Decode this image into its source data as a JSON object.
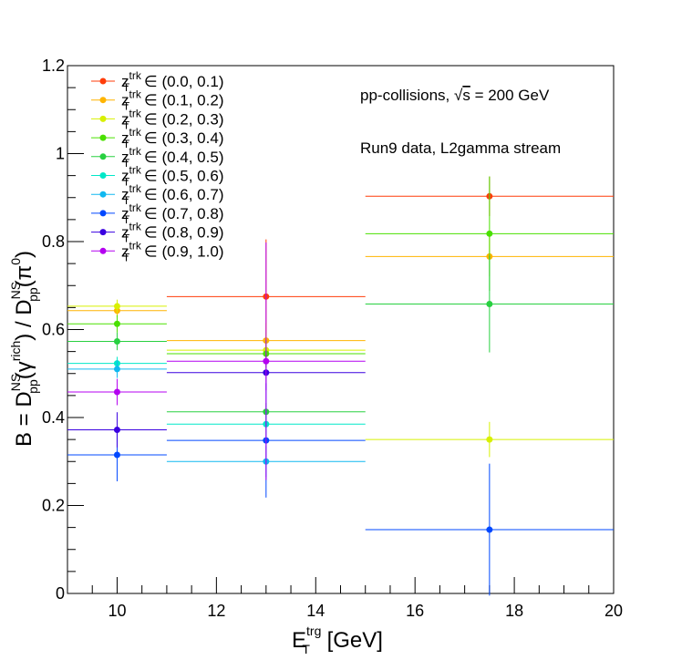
{
  "chart_data": {
    "type": "scatter",
    "ylabel": {
      "prefix": "B = D",
      "num_sup": "NS",
      "num_sub": "pp",
      "num_arg": "(γ",
      "num_arg_sup": "rich",
      "num_arg_end": ")",
      "sep": " / D",
      "den_sup": "NS",
      "den_sub": "pp",
      "den_arg": "(π",
      "den_arg_sup": "0",
      "den_arg_end": ")"
    },
    "xlabel": {
      "base": "E",
      "sup": "trg",
      "sub": "T",
      "rest": " [GeV]"
    },
    "xlim": [
      9,
      20
    ],
    "ylim": [
      0,
      1.2
    ],
    "xticks": [
      10,
      12,
      14,
      16,
      18,
      20
    ],
    "yticks": [
      0,
      0.2,
      0.4,
      0.6,
      0.8,
      1,
      1.2
    ],
    "ytick_labels": [
      "0",
      "0.2",
      "0.4",
      "0.6",
      "0.8",
      "1",
      "1.2"
    ],
    "legend_position": "top-left",
    "annotations": [
      {
        "text": "pp-collisions, ",
        "sqrt": "s",
        "tail": " = 200 GeV"
      },
      {
        "text": "Run9 data, L2gamma stream"
      }
    ],
    "bins": [
      {
        "x": 10,
        "xlow": 9,
        "xhigh": 11
      },
      {
        "x": 13,
        "xlow": 11,
        "xhigh": 15
      },
      {
        "x": 17.5,
        "xlow": 15,
        "xhigh": 20
      }
    ],
    "series": [
      {
        "name": "z_T^trk ∈ (0.0, 0.1)",
        "label_base": "z",
        "label_sup": "trk",
        "label_sub": "T",
        "label_range": " ∈ (0.0, 0.1)",
        "color": "#ff3d0a",
        "points": [
          {
            "bin": 1,
            "y": 0.675,
            "err": 0.13
          },
          {
            "bin": 2,
            "y": 0.903,
            "err": 0.045
          }
        ]
      },
      {
        "name": "z_T^trk ∈ (0.1, 0.2)",
        "label_base": "z",
        "label_sup": "trk",
        "label_sub": "T",
        "label_range": " ∈ (0.1, 0.2)",
        "color": "#ffb400",
        "points": [
          {
            "bin": 0,
            "y": 0.643,
            "err": 0.015
          },
          {
            "bin": 1,
            "y": 0.575,
            "err": 0.04
          },
          {
            "bin": 2,
            "y": 0.766,
            "err": 0.045
          }
        ]
      },
      {
        "name": "z_T^trk ∈ (0.2, 0.3)",
        "label_base": "z",
        "label_sup": "trk",
        "label_sub": "T",
        "label_range": " ∈ (0.2, 0.3)",
        "color": "#d8f000",
        "points": [
          {
            "bin": 0,
            "y": 0.653,
            "err": 0.015
          },
          {
            "bin": 1,
            "y": 0.553,
            "err": 0.04
          },
          {
            "bin": 2,
            "y": 0.35,
            "err": 0.04
          }
        ]
      },
      {
        "name": "z_T^trk ∈ (0.3, 0.4)",
        "label_base": "z",
        "label_sup": "trk",
        "label_sub": "T",
        "label_range": " ∈ (0.3, 0.4)",
        "color": "#4ae000",
        "points": [
          {
            "bin": 0,
            "y": 0.613,
            "err": 0.02
          },
          {
            "bin": 1,
            "y": 0.545,
            "err": 0.03
          },
          {
            "bin": 2,
            "y": 0.818,
            "err": 0.13
          }
        ]
      },
      {
        "name": "z_T^trk ∈ (0.4, 0.5)",
        "label_base": "z",
        "label_sup": "trk",
        "label_sub": "T",
        "label_range": " ∈ (0.4, 0.5)",
        "color": "#28d040",
        "points": [
          {
            "bin": 0,
            "y": 0.573,
            "err": 0.02
          },
          {
            "bin": 1,
            "y": 0.413,
            "err": 0.02
          },
          {
            "bin": 2,
            "y": 0.658,
            "err": 0.11
          }
        ]
      },
      {
        "name": "z_T^trk ∈ (0.5, 0.6)",
        "label_base": "z",
        "label_sup": "trk",
        "label_sub": "T",
        "label_range": " ∈ (0.5, 0.6)",
        "color": "#00e8c8",
        "points": [
          {
            "bin": 0,
            "y": 0.523,
            "err": 0.015
          },
          {
            "bin": 1,
            "y": 0.385,
            "err": 0.03
          }
        ]
      },
      {
        "name": "z_T^trk ∈ (0.6, 0.7)",
        "label_base": "z",
        "label_sup": "trk",
        "label_sub": "T",
        "label_range": " ∈ (0.6, 0.7)",
        "color": "#10b8f0",
        "points": [
          {
            "bin": 0,
            "y": 0.51,
            "err": 0.02
          },
          {
            "bin": 1,
            "y": 0.3,
            "err": 0.035
          }
        ]
      },
      {
        "name": "z_T^trk ∈ (0.7, 0.8)",
        "label_base": "z",
        "label_sup": "trk",
        "label_sub": "T",
        "label_range": " ∈ (0.7, 0.8)",
        "color": "#0048ff",
        "points": [
          {
            "bin": 0,
            "y": 0.315,
            "err": 0.06
          },
          {
            "bin": 1,
            "y": 0.348,
            "err": 0.13
          },
          {
            "bin": 2,
            "y": 0.145,
            "err": 0.15
          }
        ]
      },
      {
        "name": "z_T^trk ∈ (0.8, 0.9)",
        "label_base": "z",
        "label_sup": "trk",
        "label_sub": "T",
        "label_range": " ∈ (0.8, 0.9)",
        "color": "#3a00e0",
        "points": [
          {
            "bin": 0,
            "y": 0.372,
            "err": 0.04
          },
          {
            "bin": 1,
            "y": 0.502,
            "err": 0.04
          }
        ]
      },
      {
        "name": "z_T^trk ∈ (0.9, 1.0)",
        "label_base": "z",
        "label_sup": "trk",
        "label_sub": "T",
        "label_range": " ∈ (0.9, 1.0)",
        "color": "#b400f0",
        "points": [
          {
            "bin": 0,
            "y": 0.458,
            "err": 0.03
          },
          {
            "bin": 1,
            "y": 0.528,
            "err": 0.27
          }
        ]
      }
    ]
  }
}
